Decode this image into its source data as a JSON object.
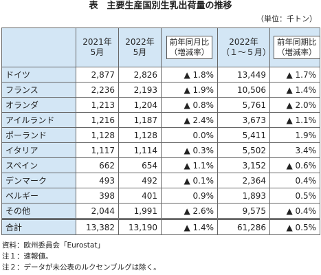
{
  "header": {
    "title": "表　主要生産国別生乳出荷量の推移",
    "unit": "（単位：千トン）"
  },
  "table": {
    "columns": [
      [],
      [
        "2021年",
        "5月"
      ],
      [
        "2022年",
        "5月"
      ],
      [
        "前年同月比",
        "（増減率）"
      ],
      [
        "2022年",
        "（１～５月）"
      ],
      [
        "前年同期比",
        "（増減率）"
      ]
    ],
    "rows": [
      [
        "ドイツ",
        "2,877",
        "2,826",
        "▲ 1.8%",
        "13,449",
        "▲ 1.7%"
      ],
      [
        "フランス",
        "2,236",
        "2,193",
        "▲ 1.9%",
        "10,506",
        "▲ 1.4%"
      ],
      [
        "オランダ",
        "1,213",
        "1,204",
        "▲ 0.8%",
        "5,761",
        "▲ 2.0%"
      ],
      [
        "アイルランド",
        "1,216",
        "1,187",
        "▲ 2.4%",
        "3,673",
        "▲ 1.1%"
      ],
      [
        "ポーランド",
        "1,128",
        "1,128",
        "0.0%",
        "5,411",
        "1.9%"
      ],
      [
        "イタリア",
        "1,117",
        "1,114",
        "▲ 0.3%",
        "5,502",
        "3.4%"
      ],
      [
        "スペイン",
        "662",
        "654",
        "▲ 1.1%",
        "3,152",
        "▲ 0.6%"
      ],
      [
        "デンマーク",
        "493",
        "492",
        "▲ 0.1%",
        "2,364",
        "0.4%"
      ],
      [
        "ベルギー",
        "398",
        "401",
        "0.9%",
        "1,893",
        "0.5%"
      ],
      [
        "その他",
        "2,044",
        "1,991",
        "▲ 2.6%",
        "9,575",
        "▲ 0.4%"
      ],
      [
        "合計",
        "13,382",
        "13,190",
        "▲ 1.4%",
        "61,286",
        "▲ 0.5%"
      ]
    ]
  },
  "notes": [
    "資料：欧州委員会「Eurostat」",
    "注１：速報値。",
    "注２：データが未公表のルクセンブルグは除く。"
  ]
}
